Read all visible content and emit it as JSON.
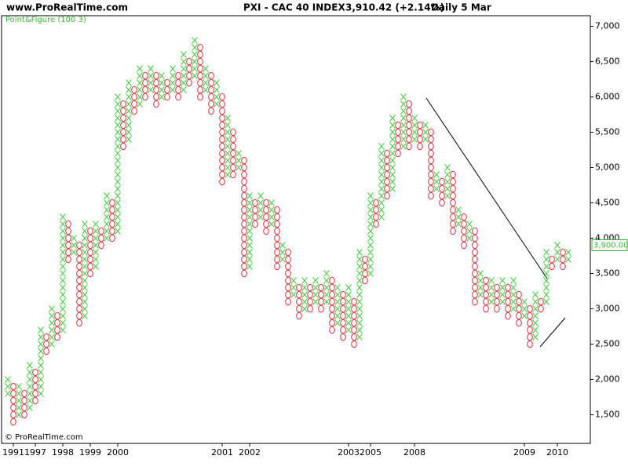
{
  "header": {
    "site": "www.ProRealTime.com",
    "title": "PXI - CAC 40 INDEX",
    "last_price": "3,910.42 (+2.14%)",
    "period": "Daily  5 Mar"
  },
  "footer": "© ProRealTime.com",
  "chart_data": {
    "type": "point_figure",
    "subtitle": "Point&Figure (100 3)",
    "x_color": "#44cc44",
    "o_color": "#e03040",
    "categories": [
      null,
      "1991",
      null,
      null,
      null,
      "1997",
      null,
      null,
      null,
      null,
      "1998",
      null,
      null,
      null,
      null,
      "1999",
      null,
      null,
      null,
      null,
      "2000",
      null,
      null,
      null,
      null,
      null,
      null,
      null,
      null,
      null,
      null,
      null,
      null,
      null,
      null,
      null,
      null,
      null,
      null,
      "2001",
      null,
      null,
      null,
      null,
      "2002",
      null,
      null,
      null,
      null,
      null,
      null,
      null,
      null,
      null,
      null,
      null,
      null,
      null,
      null,
      null,
      null,
      null,
      "2003",
      null,
      null,
      null,
      "2005",
      null,
      null,
      null,
      null,
      null,
      null,
      null,
      "2008",
      null,
      null,
      null,
      null,
      null,
      null,
      null,
      null,
      null,
      null,
      null,
      null,
      null,
      null,
      null,
      null,
      null,
      null,
      null,
      "2009",
      null,
      null,
      null,
      null,
      null,
      "2010",
      null,
      null
    ],
    "directions": [
      "X",
      "O",
      "X",
      "O",
      "X",
      "O",
      "X",
      "O",
      "X",
      "O",
      "X",
      "O",
      "X",
      "O",
      "X",
      "O",
      "X",
      "O",
      "X",
      "O",
      "X",
      "O",
      "X",
      "O",
      "X",
      "O",
      "X",
      "O",
      "X",
      "O",
      "X",
      "O",
      "X",
      "O",
      "X",
      "O",
      "X",
      "O",
      "X",
      "O",
      "X",
      "O",
      "X",
      "O",
      "X",
      "O",
      "X",
      "O",
      "X",
      "O",
      "X",
      "O",
      "X",
      "O",
      "X",
      "O",
      "X",
      "O",
      "X",
      "O",
      "X",
      "O",
      "X",
      "O",
      "X",
      "O",
      "X",
      "O",
      "X",
      "O",
      "X",
      "O",
      "X",
      "O",
      "X",
      "O",
      "X",
      "O",
      "X",
      "O",
      "X",
      "O",
      "X",
      "O",
      "X",
      "O",
      "X",
      "O",
      "X",
      "O",
      "X",
      "O",
      "X",
      "O",
      "X",
      "O",
      "X",
      "O",
      "X",
      "O",
      "X",
      "O",
      "X"
    ],
    "lows": [
      1800,
      1400,
      1500,
      1500,
      1600,
      1700,
      1800,
      2400,
      2500,
      2600,
      2700,
      3700,
      3800,
      2800,
      2900,
      3500,
      3600,
      3900,
      4000,
      4000,
      4100,
      5300,
      5400,
      5800,
      5900,
      6000,
      6100,
      5900,
      6000,
      6000,
      6100,
      6000,
      6100,
      6200,
      6300,
      6000,
      6100,
      5800,
      5900,
      4800,
      4900,
      4900,
      5000,
      3500,
      3600,
      4200,
      4300,
      4100,
      4200,
      3600,
      3700,
      3100,
      3200,
      2900,
      3000,
      3000,
      3100,
      3000,
      3100,
      2700,
      2800,
      2600,
      2700,
      2500,
      2600,
      3400,
      3500,
      4200,
      4300,
      4600,
      4700,
      5200,
      5300,
      5300,
      5400,
      5300,
      5400,
      4600,
      4700,
      4500,
      4600,
      4100,
      4200,
      3900,
      4000,
      3100,
      3200,
      3000,
      3100,
      3000,
      3100,
      2900,
      3000,
      2800,
      2900,
      2500,
      2600,
      3000,
      3100,
      3600,
      3700,
      3600,
      3700
    ],
    "highs": [
      2000,
      1900,
      1900,
      1800,
      2200,
      2100,
      2700,
      2600,
      3000,
      2900,
      4300,
      4200,
      4000,
      3900,
      4200,
      4100,
      4200,
      4100,
      4600,
      4500,
      6000,
      5900,
      6200,
      6100,
      6400,
      6300,
      6400,
      6300,
      6300,
      6200,
      6400,
      6300,
      6600,
      6500,
      6800,
      6700,
      6400,
      6300,
      6200,
      6000,
      5700,
      5500,
      5200,
      5100,
      4600,
      4500,
      4600,
      4500,
      4500,
      4400,
      3900,
      3800,
      3400,
      3300,
      3400,
      3300,
      3400,
      3300,
      3500,
      3400,
      3300,
      3200,
      3300,
      3100,
      3800,
      3700,
      4600,
      4500,
      5300,
      5200,
      5700,
      5600,
      6000,
      5900,
      5700,
      5600,
      5600,
      5500,
      4900,
      4800,
      5000,
      4900,
      4400,
      4300,
      4200,
      4100,
      3500,
      3400,
      3400,
      3300,
      3400,
      3300,
      3400,
      3200,
      3100,
      3000,
      3200,
      3100,
      3800,
      3700,
      3900,
      3800,
      3800
    ],
    "box_size": 100,
    "ylim": [
      1150,
      7150
    ],
    "yticks": [
      {
        "value": 1500,
        "label": "1,500"
      },
      {
        "value": 2000,
        "label": "2,000"
      },
      {
        "value": 2500,
        "label": "2,500"
      },
      {
        "value": 3000,
        "label": "3,000"
      },
      {
        "value": 3500,
        "label": "3,500"
      },
      {
        "value": 4000,
        "label": "4,000"
      },
      {
        "value": 4500,
        "label": "4,500"
      },
      {
        "value": 5000,
        "label": "5,000"
      },
      {
        "value": 5500,
        "label": "5,500"
      },
      {
        "value": 6000,
        "label": "6,000"
      },
      {
        "value": 6500,
        "label": "6,500"
      },
      {
        "value": 7000,
        "label": "7,000"
      }
    ],
    "last_value": {
      "value": 3900,
      "label": "3,900.00"
    }
  }
}
